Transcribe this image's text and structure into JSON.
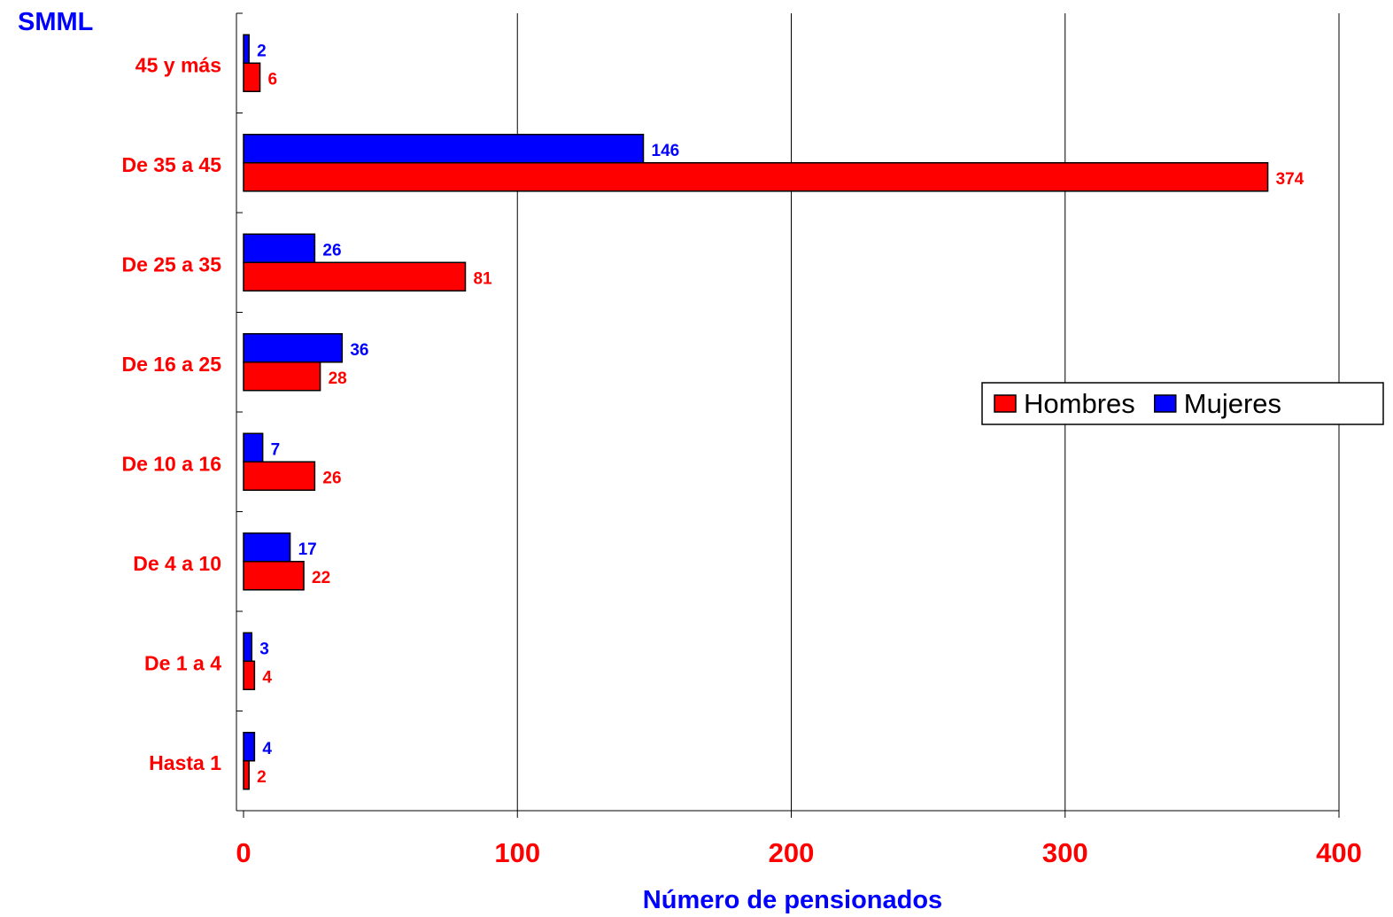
{
  "chart_data": {
    "type": "bar",
    "orientation": "horizontal",
    "ylabel": "SMML",
    "xlabel": "Número de pensionados",
    "categories": [
      "45 y más",
      "De 35 a 45",
      "De 25 a 35",
      "De 16 a 25",
      "De 10 a 16",
      "De 4 a 10",
      "De 1 a 4",
      "Hasta 1"
    ],
    "series": [
      {
        "name": "Mujeres",
        "color": "#0000ff",
        "values": [
          2,
          146,
          26,
          36,
          7,
          17,
          3,
          4
        ]
      },
      {
        "name": "Hombres",
        "color": "#ff0000",
        "values": [
          6,
          374,
          81,
          28,
          26,
          22,
          4,
          2
        ]
      }
    ],
    "xlim": [
      0,
      400
    ],
    "xticks": [
      0,
      100,
      200,
      300,
      400
    ],
    "grid": "vertical",
    "legend_placement": "right",
    "legend_order": [
      "Hombres",
      "Mujeres"
    ],
    "colors": {
      "category_labels": "#ff0000",
      "tick_labels": "#ff0000",
      "axis_title": "#0000ff",
      "grid": "#000000"
    }
  }
}
